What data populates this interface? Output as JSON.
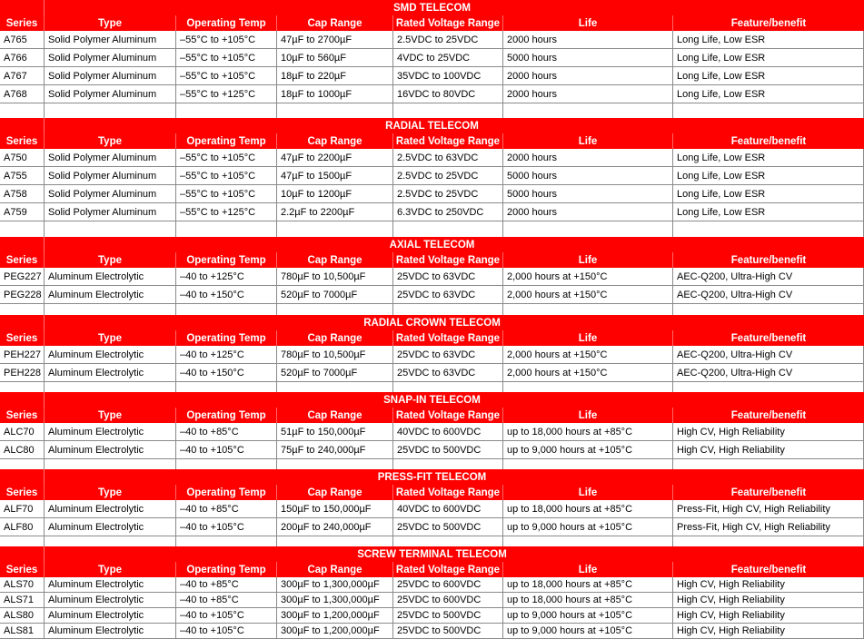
{
  "table": {
    "colors": {
      "accent_red": "#fe0000",
      "grid_line": "#8a8a8a",
      "header_text": "#ffffff",
      "body_text": "#000000"
    },
    "columns": [
      "Series",
      "Type",
      "Operating Temp",
      "Cap Range",
      "Rated Voltage Range",
      "Life",
      "Feature/benefit"
    ],
    "sections": [
      {
        "title": "SMD TELECOM",
        "rows": [
          [
            "A765",
            "Solid Polymer Aluminum",
            "–55°C to +105°C",
            "47µF to 2700µF",
            "2.5VDC to 25VDC",
            "2000 hours",
            "Long Life, Low ESR"
          ],
          [
            "A766",
            "Solid Polymer Aluminum",
            "–55°C to +105°C",
            "10µF to 560µF",
            "4VDC to 25VDC",
            "5000 hours",
            "Long Life, Low ESR"
          ],
          [
            "A767",
            "Solid Polymer Aluminum",
            "–55°C to +105°C",
            "18µF to 220µF",
            "35VDC to 100VDC",
            "2000 hours",
            "Long Life, Low ESR"
          ],
          [
            "A768",
            "Solid Polymer Aluminum",
            "–55°C to +125°C",
            "18µF to 1000µF",
            "16VDC to 80VDC",
            "2000 hours",
            "Long Life, Low ESR"
          ]
        ]
      },
      {
        "title": "RADIAL TELECOM",
        "rows": [
          [
            "A750",
            "Solid Polymer Aluminum",
            "–55°C to +105°C",
            "47µF to 2200µF",
            "2.5VDC to 63VDC",
            "2000 hours",
            "Long Life, Low ESR"
          ],
          [
            "A755",
            "Solid Polymer Aluminum",
            "–55°C to +105°C",
            "47µF to 1500µF",
            "2.5VDC to 25VDC",
            "5000 hours",
            "Long Life, Low ESR"
          ],
          [
            "A758",
            "Solid Polymer Aluminum",
            "–55°C to +105°C",
            "10µF to 1200µF",
            "2.5VDC to 25VDC",
            "5000 hours",
            "Long Life, Low ESR"
          ],
          [
            "A759",
            "Solid Polymer Aluminum",
            "–55°C to +125°C",
            "2.2µF to 2200µF",
            "6.3VDC to 250VDC",
            "2000 hours",
            "Long Life, Low ESR"
          ]
        ]
      },
      {
        "title": "AXIAL TELECOM",
        "rows": [
          [
            "PEG227",
            "Aluminum Electrolytic",
            "–40 to +125°C",
            "780µF to 10,500µF",
            "25VDC to 63VDC",
            "2,000 hours at +150°C",
            "AEC-Q200, Ultra-High CV"
          ],
          [
            "PEG228",
            "Aluminum Electrolytic",
            "–40 to +150°C",
            "520µF to 7000µF",
            "25VDC to 63VDC",
            "2,000 hours at +150°C",
            "AEC-Q200, Ultra-High CV"
          ]
        ]
      },
      {
        "title": "RADIAL CROWN TELECOM",
        "rows": [
          [
            "PEH227",
            "Aluminum Electrolytic",
            "–40 to +125°C",
            "780µF to 10,500µF",
            "25VDC to 63VDC",
            "2,000 hours at +150°C",
            "AEC-Q200, Ultra-High CV"
          ],
          [
            "PEH228",
            "Aluminum Electrolytic",
            "–40 to +150°C",
            "520µF to 7000µF",
            "25VDC to 63VDC",
            "2,000 hours at +150°C",
            "AEC-Q200, Ultra-High CV"
          ]
        ]
      },
      {
        "title": "SNAP-IN TELECOM",
        "rows": [
          [
            "ALC70",
            "Aluminum Electrolytic",
            "–40 to +85°C",
            "51µF to 150,000µF",
            "40VDC to 600VDC",
            "up to 18,000 hours at +85°C",
            "High CV, High Reliability"
          ],
          [
            "ALC80",
            "Aluminum Electrolytic",
            "–40 to +105°C",
            "75µF to 240,000µF",
            "25VDC to 500VDC",
            "up to 9,000 hours at +105°C",
            "High CV, High Reliability"
          ]
        ]
      },
      {
        "title": "PRESS-FIT TELECOM",
        "rows": [
          [
            "ALF70",
            "Aluminum Electrolytic",
            "–40 to +85°C",
            "150µF to 150,000µF",
            "40VDC to 600VDC",
            "up to 18,000 hours at +85°C",
            "Press-Fit, High CV, High Reliability"
          ],
          [
            "ALF80",
            "Aluminum Electrolytic",
            "–40 to +105°C",
            "200µF to 240,000µF",
            "25VDC to 500VDC",
            "up to 9,000 hours at +105°C",
            "Press-Fit, High CV, High Reliability"
          ]
        ]
      },
      {
        "title": "SCREW TERMINAL TELECOM",
        "rows": [
          [
            "ALS70",
            "Aluminum Electrolytic",
            "–40 to +85°C",
            "300µF to 1,300,000µF",
            "25VDC to 600VDC",
            "up to 18,000 hours at +85°C",
            "High CV, High Reliability"
          ],
          [
            "ALS71",
            "Aluminum Electrolytic",
            "–40 to +85°C",
            "300µF to 1,300,000µF",
            "25VDC to 600VDC",
            "up to 18,000 hours at +85°C",
            "High CV, High Reliability"
          ],
          [
            "ALS80",
            "Aluminum Electrolytic",
            "–40 to +105°C",
            "300µF to 1,200,000µF",
            "25VDC to 500VDC",
            "up to 9,000 hours at +105°C",
            "High CV, High Reliability"
          ],
          [
            "ALS81",
            "Aluminum Electrolytic",
            "–40 to +105°C",
            "300µF to 1,200,000µF",
            "25VDC to 500VDC",
            "up to 9,000 hours at +105°C",
            "High CV, High Reliability"
          ]
        ]
      }
    ]
  }
}
